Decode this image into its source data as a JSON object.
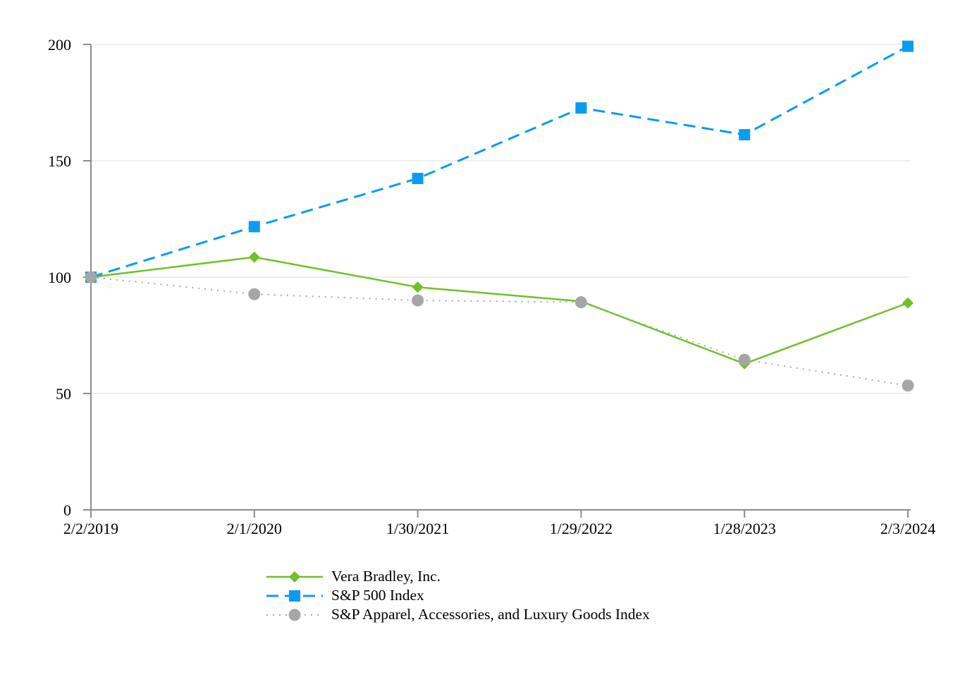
{
  "chart_data": {
    "type": "line",
    "title": "",
    "xlabel": "",
    "ylabel": "",
    "categories": [
      "2/2/2019",
      "2/1/2020",
      "1/30/2021",
      "1/29/2022",
      "1/28/2023",
      "2/3/2024"
    ],
    "series": [
      {
        "name": "Vera Bradley, Inc.",
        "values": [
          100,
          108.6,
          95.7,
          89.6,
          62.8,
          88.9
        ],
        "color": "#6EC127",
        "marker": "diamond",
        "line_style": "solid"
      },
      {
        "name": "S&P 500 Index",
        "values": [
          100,
          121.7,
          142.4,
          172.7,
          161.2,
          199.2
        ],
        "color": "#0B9BF3",
        "marker": "square",
        "line_style": "dashed"
      },
      {
        "name": "S&P Apparel, Accessories, and Luxury Goods Index",
        "values": [
          100,
          92.7,
          90.0,
          89.2,
          64.5,
          53.4
        ],
        "color": "#A6A6A6",
        "marker": "circle",
        "line_style": "dotted"
      }
    ],
    "ylim": [
      0,
      200
    ],
    "yticks": [
      0,
      50,
      100,
      150,
      200
    ],
    "grid": true,
    "legend_position": "bottom-left",
    "colors": {
      "gridline": "#E8E8E8",
      "axis": "#8C8C8C",
      "text": "#000000",
      "background": "#FFFFFF"
    }
  }
}
